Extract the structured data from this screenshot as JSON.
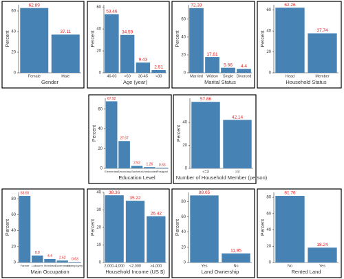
{
  "chart_data": [
    {
      "type": "bar",
      "x_label": "Gender",
      "y_label": "Percent",
      "categories": [
        "Female",
        "Male"
      ],
      "values": [
        62.89,
        37.11
      ],
      "color": "#4682b4",
      "label_color": "#e41a1c",
      "ylim": [
        0,
        66
      ],
      "yticks": [
        0,
        20,
        40,
        60
      ]
    },
    {
      "type": "bar",
      "x_label": "Age (year)",
      "y_label": "Percent",
      "categories": [
        "46-60",
        ">60",
        "30-45",
        "<30"
      ],
      "values": [
        53.46,
        34.59,
        9.43,
        2.51
      ],
      "color": "#4682b4",
      "label_color": "#e41a1c",
      "ylim": [
        0,
        62
      ],
      "yticks": [
        0,
        20,
        40,
        60
      ]
    },
    {
      "type": "bar",
      "x_label": "Marital Status",
      "y_label": "Percent",
      "categories": [
        "Married",
        "Widow",
        "Single",
        "Divorced"
      ],
      "values": [
        72.33,
        17.61,
        5.66,
        4.4
      ],
      "color": "#4682b4",
      "label_color": "#e41a1c",
      "ylim": [
        0,
        76
      ],
      "yticks": [
        0,
        20,
        40,
        60
      ]
    },
    {
      "type": "bar",
      "x_label": "Household Status",
      "y_label": "Percent",
      "categories": [
        "Head",
        "Member"
      ],
      "values": [
        62.26,
        37.74
      ],
      "color": "#4682b4",
      "label_color": "#e41a1c",
      "ylim": [
        0,
        65
      ],
      "yticks": [
        0,
        20,
        40,
        60
      ]
    },
    {
      "type": "bar",
      "x_label": "Education Level",
      "y_label": "Percent",
      "categories": [
        "Elementary",
        "Secondary",
        "Bachelor",
        "Uneducated",
        "Postgrad"
      ],
      "values": [
        67.92,
        27.67,
        2.52,
        1.26,
        0.63
      ],
      "color": "#4682b4",
      "label_color": "#e41a1c",
      "ylim": [
        0,
        71
      ],
      "yticks": [
        0,
        20,
        40,
        60
      ]
    },
    {
      "type": "bar",
      "x_label": "Number of Household Member (person)",
      "y_label": "Percent",
      "categories": [
        "<=3",
        ">3"
      ],
      "values": [
        57.86,
        42.14
      ],
      "color": "#4682b4",
      "label_color": "#e41a1c",
      "ylim": [
        0,
        61
      ],
      "yticks": [
        0,
        20,
        40
      ]
    },
    {
      "type": "bar",
      "x_label": "Main Occupation",
      "y_label": "Percent",
      "categories": [
        "Farmer",
        "Labourer",
        "Merchant",
        "Government",
        "Unemployed"
      ],
      "values": [
        83.65,
        8.8,
        4.4,
        2.52,
        0.63
      ],
      "color": "#4682b4",
      "label_color": "#e41a1c",
      "ylim": [
        0,
        88
      ],
      "yticks": [
        0,
        20,
        40,
        60,
        80
      ]
    },
    {
      "type": "bar",
      "x_label": "Household Income (US $)",
      "y_label": "Percent",
      "categories": [
        "2,000-4,000",
        "<2,000",
        ">4,000"
      ],
      "values": [
        38.36,
        35.22,
        26.42
      ],
      "color": "#4682b4",
      "label_color": "#e41a1c",
      "ylim": [
        0,
        40
      ],
      "yticks": [
        0,
        10,
        20,
        30,
        40
      ]
    },
    {
      "type": "bar",
      "x_label": "Land Ownership",
      "y_label": "Percent",
      "categories": [
        "Yes",
        "No"
      ],
      "values": [
        88.05,
        11.95
      ],
      "color": "#4682b4",
      "label_color": "#e41a1c",
      "ylim": [
        0,
        92
      ],
      "yticks": [
        0,
        20,
        40,
        60,
        80
      ]
    },
    {
      "type": "bar",
      "x_label": "Rented Land",
      "y_label": "Percent",
      "categories": [
        "No",
        "Yes"
      ],
      "values": [
        81.76,
        18.24
      ],
      "color": "#4682b4",
      "label_color": "#e41a1c",
      "ylim": [
        0,
        86
      ],
      "yticks": [
        0,
        20,
        40,
        60,
        80
      ]
    }
  ]
}
